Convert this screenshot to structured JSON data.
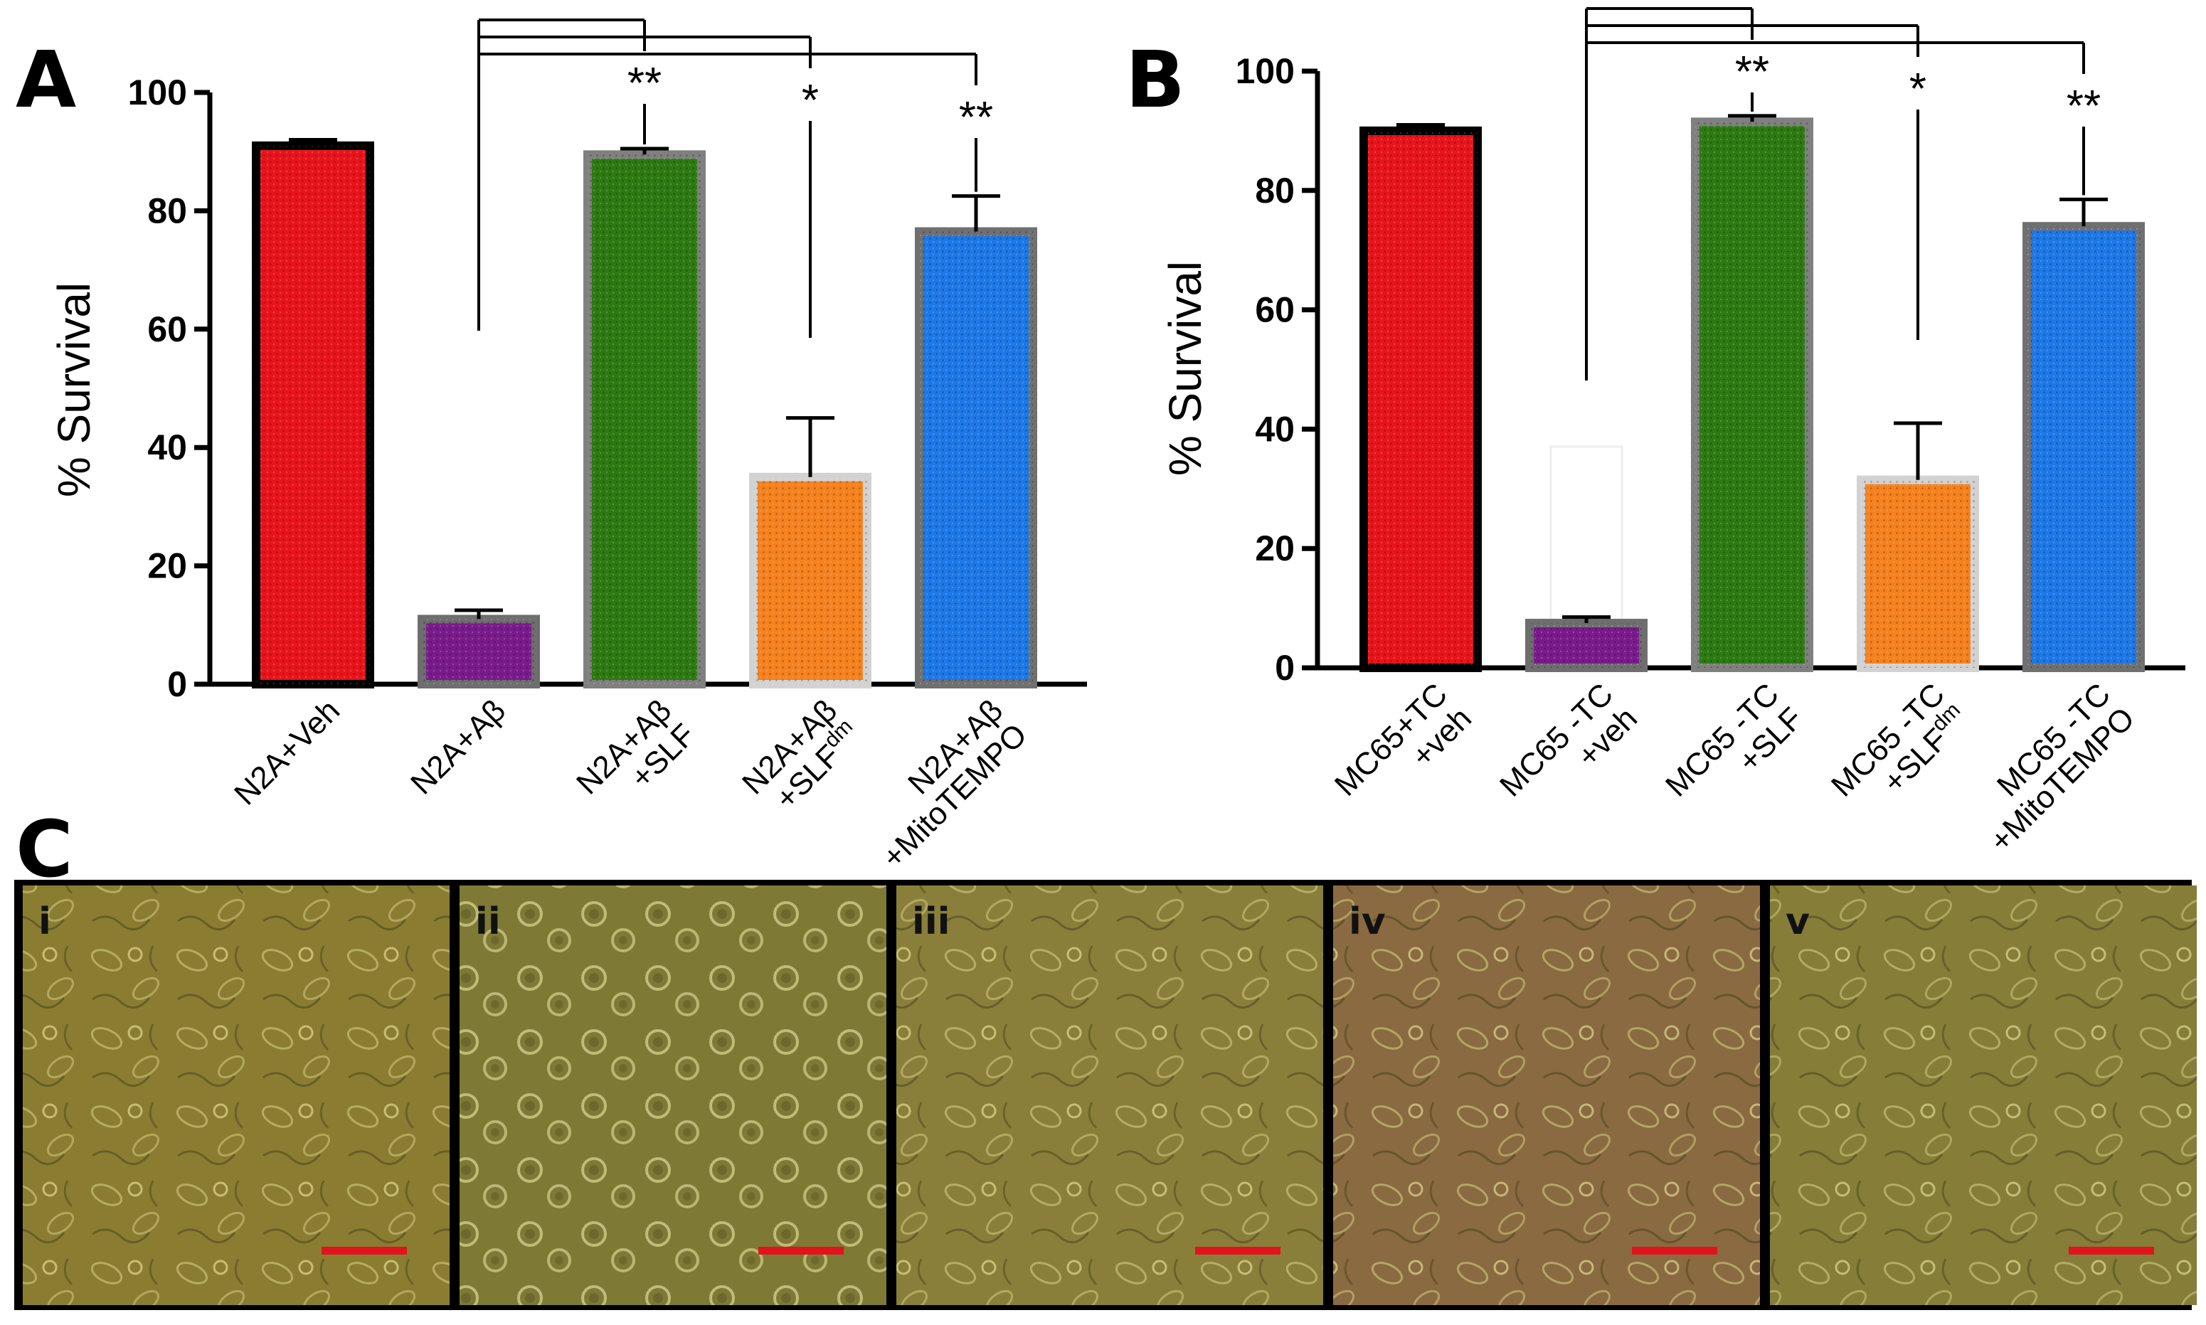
{
  "chart_data": [
    {
      "panel": "A",
      "type": "bar",
      "ylabel": "% Survival",
      "ylim": [
        0,
        100
      ],
      "yticks": [
        "0",
        "20",
        "40",
        "60",
        "80",
        "100"
      ],
      "categories": [
        {
          "line1": "N2A+Veh",
          "line2": "",
          "sup": ""
        },
        {
          "line1": "N2A+Aβ",
          "line2": "",
          "sup": ""
        },
        {
          "line1": "N2A+Aβ",
          "line2": "+SLF",
          "sup": ""
        },
        {
          "line1": "N2A+Aβ",
          "line2": "+SLF",
          "sup": "dm"
        },
        {
          "line1": "N2A+Aβ",
          "line2": "+MitoTEMPO",
          "sup": ""
        }
      ],
      "values": [
        91,
        11,
        89.5,
        35,
        76.5
      ],
      "errors": [
        1,
        1.5,
        1,
        10,
        6
      ],
      "colors": [
        "#e8141b",
        "#7a1b8c",
        "#2d7a12",
        "#f5821f",
        "#1e78e6"
      ],
      "borders": [
        "#000000",
        "#6e6e6e",
        "#808080",
        "#d2d2d2",
        "#707070"
      ],
      "significance": [
        {
          "target": 2,
          "label": "**"
        },
        {
          "target": 3,
          "label": "*"
        },
        {
          "target": 4,
          "label": "**"
        }
      ],
      "comparison_base": 1
    },
    {
      "panel": "B",
      "type": "bar",
      "ylabel": "% Survival",
      "ylim": [
        0,
        100
      ],
      "yticks": [
        "0",
        "20",
        "40",
        "60",
        "80",
        "100"
      ],
      "categories": [
        {
          "line1": "MC65+TC",
          "line2": "+veh",
          "sup": ""
        },
        {
          "line1": "MC65 -TC",
          "line2": "+veh",
          "sup": ""
        },
        {
          "line1": "MC65 -TC",
          "line2": "+SLF",
          "sup": ""
        },
        {
          "line1": "MC65 -TC",
          "line2": "+SLF",
          "sup": "dm"
        },
        {
          "line1": "MC65 -TC",
          "line2": "+MitoTEMPO",
          "sup": ""
        }
      ],
      "values": [
        90,
        7.5,
        91.5,
        31.5,
        74
      ],
      "errors": [
        1,
        1,
        1,
        9.5,
        4.5
      ],
      "colors": [
        "#e8141b",
        "#7a1b8c",
        "#2d7a12",
        "#f5821f",
        "#1e78e6"
      ],
      "borders": [
        "#000000",
        "#6e6e6e",
        "#808080",
        "#d2d2d2",
        "#707070"
      ],
      "significance": [
        {
          "target": 2,
          "label": "**"
        },
        {
          "target": 3,
          "label": "*"
        },
        {
          "target": 4,
          "label": "**"
        }
      ],
      "comparison_base": 1
    }
  ],
  "panel_labels": {
    "a": "A",
    "b": "B",
    "c": "C"
  },
  "micrographs": [
    {
      "label": "i",
      "tone": "#8a7d32"
    },
    {
      "label": "ii",
      "tone": "#7e7a36"
    },
    {
      "label": "iii",
      "tone": "#8a7f3a"
    },
    {
      "label": "iv",
      "tone": "#8a6a40"
    },
    {
      "label": "v",
      "tone": "#857d38"
    }
  ],
  "scale_bar_color": "#e0141c"
}
